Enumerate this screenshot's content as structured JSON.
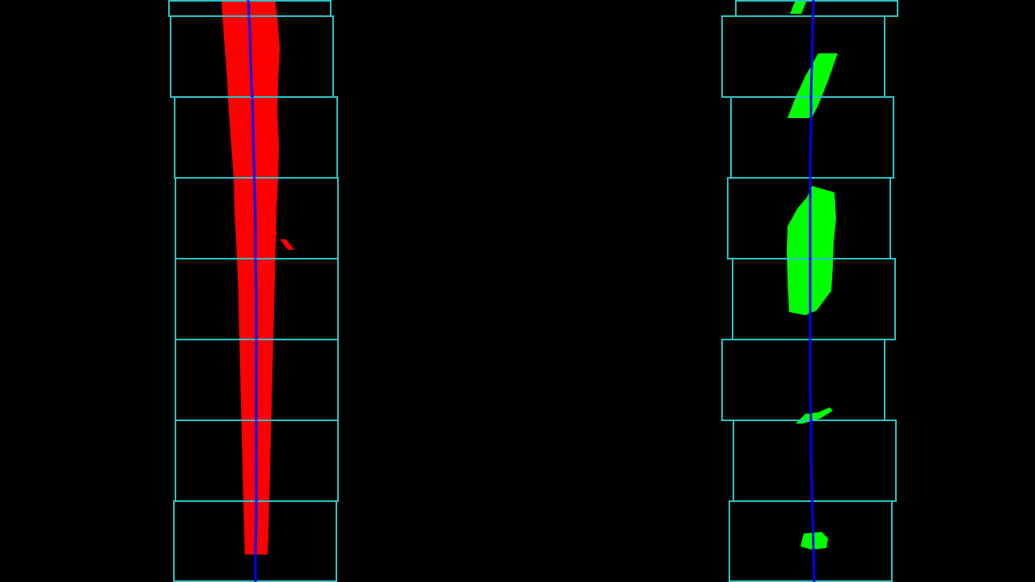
{
  "colors": {
    "background": "#000000",
    "window": "#2ec4c4",
    "left_pixels": "#ff0000",
    "right_pixels": "#00ff00",
    "fit_line": "#0000ff"
  },
  "lanes": [
    {
      "name": "left",
      "pixel_color_key": "left_pixels",
      "window_count": 8
    },
    {
      "name": "right",
      "pixel_color_key": "right_pixels",
      "window_count": 8
    }
  ]
}
